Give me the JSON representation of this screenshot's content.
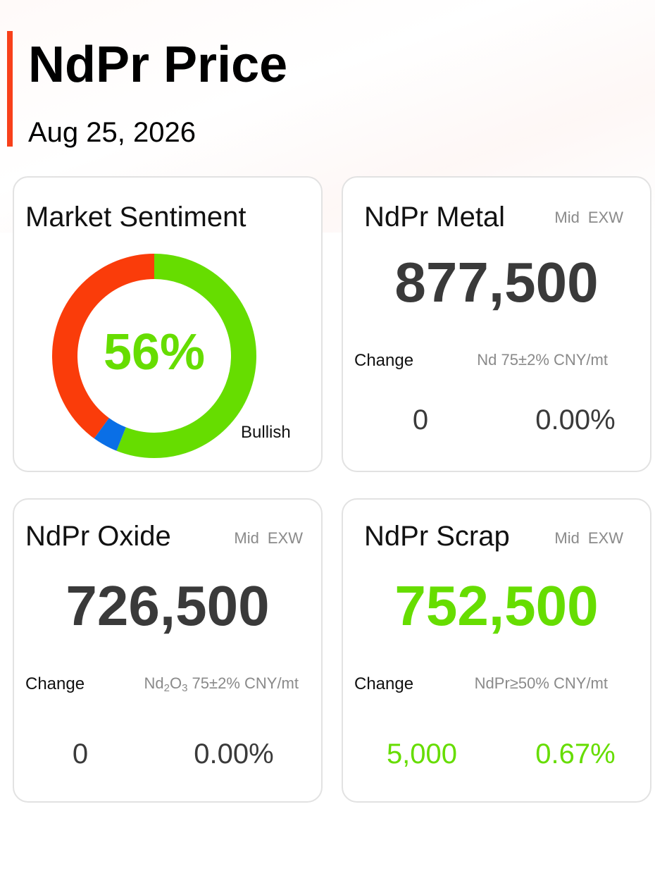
{
  "header": {
    "title": "NdPr Price",
    "date": "Aug 25, 2026"
  },
  "colors": {
    "accent": "#f8401a",
    "bullish": "#66dd00",
    "bearish": "#fa3c0a",
    "neutral": "#0a6fe6",
    "value_text": "#3a3a3a"
  },
  "sentiment": {
    "title": "Market Sentiment",
    "percent_label": "56%",
    "label": "Bullish",
    "segments": [
      {
        "name": "bullish",
        "fraction": 0.56,
        "color": "#66dd00"
      },
      {
        "name": "neutral",
        "fraction": 0.04,
        "color": "#0a6fe6"
      },
      {
        "name": "bearish",
        "fraction": 0.4,
        "color": "#fa3c0a"
      }
    ]
  },
  "metal": {
    "title": "NdPr Metal",
    "basis_mid": "Mid",
    "basis_exw": "EXW",
    "price": "877,500",
    "change_label": "Change",
    "spec": "Nd 75±2% CNY/mt",
    "change_abs": "0",
    "change_pct": "0.00%"
  },
  "oxide": {
    "title": "NdPr Oxide",
    "basis_mid": "Mid",
    "basis_exw": "EXW",
    "price": "726,500",
    "change_label": "Change",
    "spec_element1": "Nd",
    "spec_sub1": "2",
    "spec_element2": "O",
    "spec_sub2": "3",
    "spec_rest": " 75±2% CNY/mt",
    "change_abs": "0",
    "change_pct": "0.00%"
  },
  "scrap": {
    "title": "NdPr Scrap",
    "basis_mid": "Mid",
    "basis_exw": "EXW",
    "price": "752,500",
    "change_label": "Change",
    "spec": "NdPr≥50% CNY/mt",
    "change_abs": "5,000",
    "change_pct": "0.67%"
  }
}
